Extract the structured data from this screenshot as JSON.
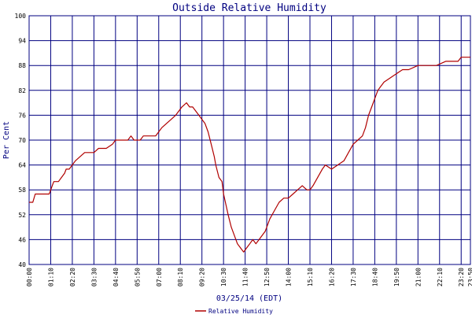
{
  "chart_data": {
    "type": "line",
    "title": "Outside Relative Humidity",
    "xlabel": "03/25/14 (EDT)",
    "ylabel": "Per Cent",
    "ylim": [
      40,
      100
    ],
    "xlim": [
      "00:00",
      "23:50"
    ],
    "yticks": [
      "40",
      "46",
      "52",
      "58",
      "64",
      "70",
      "76",
      "82",
      "88",
      "94",
      "100"
    ],
    "xticks": [
      "00:00",
      "01:10",
      "02:20",
      "03:30",
      "04:40",
      "05:50",
      "07:00",
      "08:10",
      "09:20",
      "10:30",
      "11:40",
      "12:50",
      "14:00",
      "15:10",
      "16:20",
      "17:30",
      "18:40",
      "19:50",
      "21:00",
      "22:10",
      "23:20",
      "23:50"
    ],
    "grid": true,
    "legend_placement": "bottom-center",
    "colors": {
      "series": "#b00000",
      "grid": "#000080",
      "text": "#000080"
    },
    "series": [
      {
        "name": "Relative Humidity",
        "points": [
          [
            "00:00",
            55
          ],
          [
            "00:12",
            55
          ],
          [
            "00:20",
            57
          ],
          [
            "00:40",
            57
          ],
          [
            "01:05",
            57
          ],
          [
            "01:10",
            58
          ],
          [
            "01:15",
            59
          ],
          [
            "01:20",
            60
          ],
          [
            "01:35",
            60
          ],
          [
            "01:45",
            61
          ],
          [
            "01:55",
            62
          ],
          [
            "02:00",
            63
          ],
          [
            "02:10",
            63
          ],
          [
            "02:20",
            64
          ],
          [
            "02:30",
            65
          ],
          [
            "02:45",
            66
          ],
          [
            "03:00",
            67
          ],
          [
            "03:30",
            67
          ],
          [
            "03:45",
            68
          ],
          [
            "04:10",
            68
          ],
          [
            "04:30",
            69
          ],
          [
            "04:40",
            70
          ],
          [
            "05:20",
            70
          ],
          [
            "05:30",
            71
          ],
          [
            "05:40",
            70
          ],
          [
            "06:00",
            70
          ],
          [
            "06:10",
            71
          ],
          [
            "06:50",
            71
          ],
          [
            "07:00",
            72
          ],
          [
            "07:10",
            73
          ],
          [
            "07:25",
            74
          ],
          [
            "07:40",
            75
          ],
          [
            "07:55",
            76
          ],
          [
            "08:05",
            77
          ],
          [
            "08:15",
            78
          ],
          [
            "08:30",
            79
          ],
          [
            "08:40",
            78
          ],
          [
            "08:50",
            78
          ],
          [
            "09:10",
            76
          ],
          [
            "09:20",
            75
          ],
          [
            "09:30",
            74
          ],
          [
            "09:40",
            72
          ],
          [
            "09:50",
            69
          ],
          [
            "10:00",
            66
          ],
          [
            "10:05",
            64
          ],
          [
            "10:15",
            61
          ],
          [
            "10:25",
            60
          ],
          [
            "10:30",
            57
          ],
          [
            "10:45",
            52
          ],
          [
            "10:55",
            49
          ],
          [
            "11:05",
            47
          ],
          [
            "11:15",
            45
          ],
          [
            "11:25",
            44
          ],
          [
            "11:35",
            43
          ],
          [
            "11:45",
            44
          ],
          [
            "11:55",
            45
          ],
          [
            "12:05",
            46
          ],
          [
            "12:15",
            45
          ],
          [
            "12:25",
            46
          ],
          [
            "12:35",
            47
          ],
          [
            "12:45",
            48
          ],
          [
            "12:50",
            49
          ],
          [
            "13:00",
            51
          ],
          [
            "13:15",
            53
          ],
          [
            "13:30",
            55
          ],
          [
            "13:45",
            56
          ],
          [
            "14:00",
            56
          ],
          [
            "14:15",
            57
          ],
          [
            "14:30",
            58
          ],
          [
            "14:45",
            59
          ],
          [
            "15:00",
            58
          ],
          [
            "15:10",
            58
          ],
          [
            "15:20",
            59
          ],
          [
            "15:35",
            61
          ],
          [
            "15:50",
            63
          ],
          [
            "16:00",
            64
          ],
          [
            "16:20",
            63
          ],
          [
            "16:40",
            64
          ],
          [
            "17:00",
            65
          ],
          [
            "17:15",
            67
          ],
          [
            "17:30",
            69
          ],
          [
            "17:45",
            70
          ],
          [
            "18:00",
            71
          ],
          [
            "18:10",
            73
          ],
          [
            "18:20",
            76
          ],
          [
            "18:30",
            78
          ],
          [
            "18:40",
            80
          ],
          [
            "18:50",
            82
          ],
          [
            "19:00",
            83
          ],
          [
            "19:10",
            84
          ],
          [
            "19:30",
            85
          ],
          [
            "19:50",
            86
          ],
          [
            "20:10",
            87
          ],
          [
            "20:30",
            87
          ],
          [
            "21:00",
            88
          ],
          [
            "21:30",
            88
          ],
          [
            "22:00",
            88
          ],
          [
            "22:30",
            89
          ],
          [
            "23:00",
            89
          ],
          [
            "23:10",
            89
          ],
          [
            "23:20",
            90
          ],
          [
            "23:50",
            90
          ]
        ]
      }
    ]
  }
}
